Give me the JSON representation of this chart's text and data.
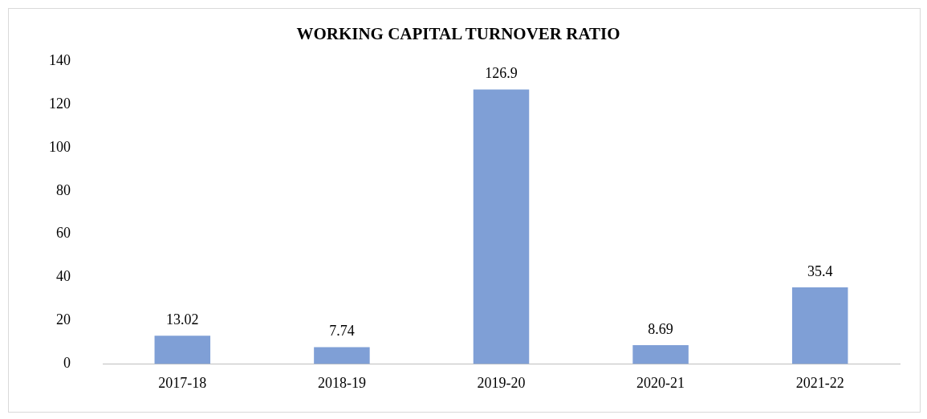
{
  "chart_data": {
    "type": "bar",
    "title": "WORKING CAPITAL TURNOVER RATIO",
    "categories": [
      "2017-18",
      "2018-19",
      "2019-20",
      "2020-21",
      "2021-22"
    ],
    "values": [
      13.02,
      7.74,
      126.9,
      8.69,
      35.4
    ],
    "value_labels": [
      "13.02",
      "7.74",
      "126.9",
      "8.69",
      "35.4"
    ],
    "color": "#7f9fd6",
    "ylim": [
      0,
      140
    ],
    "yticks": [
      0,
      20,
      40,
      60,
      80,
      100,
      120,
      140
    ],
    "grid": false,
    "legend": false
  }
}
